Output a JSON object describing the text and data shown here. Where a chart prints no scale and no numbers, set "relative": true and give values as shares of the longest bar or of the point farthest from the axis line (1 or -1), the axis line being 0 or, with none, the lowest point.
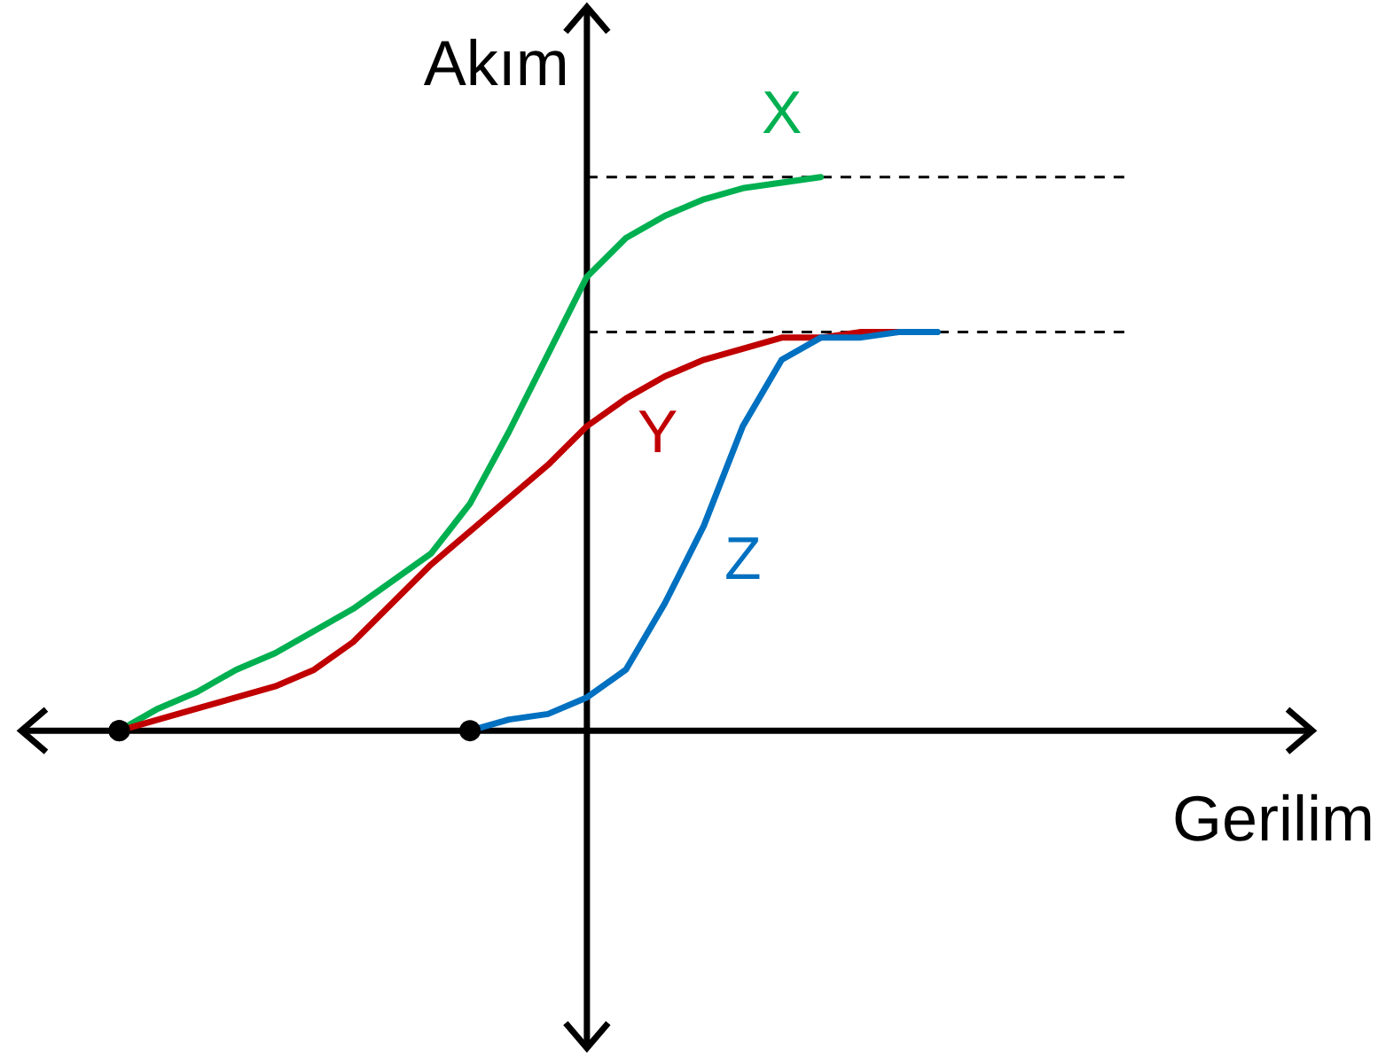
{
  "chart_data": {
    "type": "line",
    "relative": true,
    "xlabel": "Gerilim",
    "ylabel": "Akım",
    "categories": [
      null,
      null,
      null,
      null,
      null,
      null,
      null,
      null,
      null,
      null,
      null,
      null,
      null,
      null,
      null,
      null,
      null,
      null,
      null,
      null,
      null,
      null,
      null,
      null,
      null,
      null,
      null
    ],
    "series": [
      {
        "name": "X",
        "color": "#00b050",
        "values": [
          0,
          0.04,
          0.07,
          0.11,
          0.14,
          0.18,
          0.22,
          0.27,
          0.32,
          0.41,
          0.54,
          0.68,
          0.82,
          0.89,
          0.93,
          0.96,
          0.98,
          0.99,
          1,
          null,
          null,
          null,
          null,
          null,
          null,
          null,
          null
        ]
      },
      {
        "name": "Y",
        "color": "#c00000",
        "values": [
          0,
          0.02,
          0.04,
          0.06,
          0.08,
          0.11,
          0.16,
          0.23,
          0.3,
          0.36,
          0.42,
          0.48,
          0.55,
          0.6,
          0.64,
          0.67,
          0.69,
          0.71,
          0.71,
          0.72,
          0.72,
          null,
          null,
          null,
          null,
          null,
          null
        ]
      },
      {
        "name": "Z",
        "color": "#0070c0",
        "values": [
          null,
          null,
          null,
          null,
          null,
          null,
          null,
          null,
          null,
          0,
          0.02,
          0.03,
          0.06,
          0.11,
          0.23,
          0.37,
          0.55,
          0.67,
          0.71,
          0.71,
          0.72,
          0.72,
          null,
          null,
          null,
          null,
          null
        ]
      }
    ],
    "ref_lines": [
      {
        "axis": "y",
        "value": 1,
        "color": "#000000",
        "line_style": "dashed"
      },
      {
        "axis": "y",
        "value": 0.72,
        "color": "#000000",
        "line_style": "dashed"
      }
    ]
  }
}
